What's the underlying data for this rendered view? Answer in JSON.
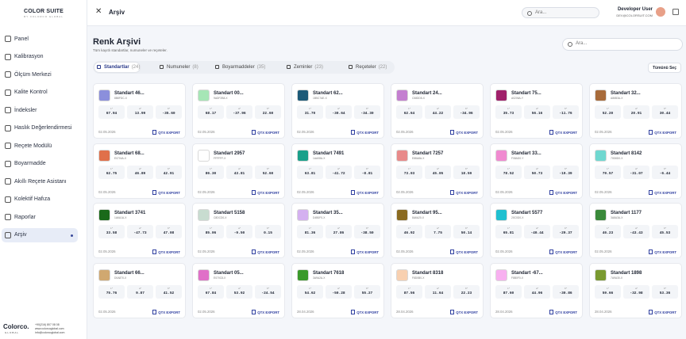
{
  "sidebar": {
    "logo": "COLOR SUITE",
    "logo_sub": "BY COLORCO GLOBAL",
    "items": [
      "Panel",
      "Kalibrasyon",
      "Ölçüm Merkezi",
      "Kalite Kontrol",
      "İndeksler",
      "Haslık Değerlendirmesi",
      "Reçete Modülü",
      "Boyarmadde",
      "Akıllı Reçete Asistanı",
      "Kolektif Hafıza",
      "Raporlar",
      "Arşiv"
    ],
    "active": 11,
    "brand": "Colorco.",
    "brand_sub": "GLOBAL",
    "contact": [
      "+90(216) 807 08 08",
      "www.colorcoglobal.com",
      "info@colorcoglobal.com"
    ]
  },
  "header": {
    "title": "Arşiv",
    "search": "Ara...",
    "user": "Developer User",
    "email": "DEV@COLORSUIT.COM"
  },
  "archive": {
    "title": "Renk Arşivi",
    "subtitle": "Tüm kayıtlı standartlar, numuneler ve reçeteler.",
    "search": "Ara...",
    "tabs": [
      {
        "label": "Standartlar",
        "count": "(24)"
      },
      {
        "label": "Numuneler",
        "count": "(8)"
      },
      {
        "label": "Boyarmaddeler",
        "count": "(35)"
      },
      {
        "label": "Zeminler",
        "count": "(23)"
      },
      {
        "label": "Reçeteler",
        "count": "(22)"
      }
    ],
    "active_tab": 0,
    "select_all": "Tümünü Seç",
    "lab_labels": [
      "L*",
      "a*",
      "b*"
    ],
    "export_label": "QTX EXPORT",
    "cards": [
      {
        "name": "Standart 46...",
        "code": "8B8FDC-X",
        "color": "#8b8fdc",
        "lab": [
          "67.94",
          "13.99",
          "-35.60"
        ],
        "date": "02.05.2026"
      },
      {
        "name": "Standart 00...",
        "code": "9ADF2B8-X",
        "color": "#a6e6b6",
        "lab": [
          "68.17",
          "-37.96",
          "22.60"
        ],
        "date": "02.05.2026"
      },
      {
        "name": "Standart 62...",
        "code": "1B5C7AE-X",
        "color": "#1c5a78",
        "lab": [
          "31.70",
          "-30.64",
          "-34.30"
        ],
        "date": "02.05.2026"
      },
      {
        "name": "Standart 24...",
        "code": "C58DD5-X",
        "color": "#c47fd0",
        "lab": [
          "62.64",
          "44.22",
          "-34.96"
        ],
        "date": "02.05.2026"
      },
      {
        "name": "Standart 75...",
        "code": "A0206A-Y",
        "color": "#a0206a",
        "lab": [
          "35.73",
          "56.16",
          "-11.76"
        ],
        "date": "02.05.2026"
      },
      {
        "name": "Standart 32...",
        "code": "A86B3A-X",
        "color": "#a86b3a",
        "lab": [
          "52.20",
          "20.91",
          "30.44"
        ],
        "date": "02.05.2026"
      },
      {
        "name": "Standart 68...",
        "code": "E0704A-X",
        "color": "#e0704a",
        "lab": [
          "62.75",
          "46.89",
          "42.91"
        ],
        "date": "02.05.2026"
      },
      {
        "name": "Standart 2957",
        "code": "FFFFFF-X",
        "color": "#ffffff",
        "lab": [
          "86.30",
          "43.81",
          "52.60"
        ],
        "date": "02.05.2026"
      },
      {
        "name": "Standart 7491",
        "code": "1AA08A-X",
        "color": "#1aa08a",
        "lab": [
          "63.81",
          "-41.72",
          "-8.81"
        ],
        "date": "02.05.2026"
      },
      {
        "name": "Standart 7257",
        "code": "E88A8A-X",
        "color": "#e88a8a",
        "lab": [
          "73.03",
          "45.05",
          "18.59"
        ],
        "date": "02.05.2026"
      },
      {
        "name": "Standart 33...",
        "code": "F08AD0-Y",
        "color": "#f08ad0",
        "lab": [
          "78.52",
          "50.73",
          "-19.39"
        ],
        "date": "02.05.2026"
      },
      {
        "name": "Standart 8142",
        "code": "70D8D0-X",
        "color": "#70d8d0",
        "lab": [
          "79.57",
          "-31.07",
          "-6.44"
        ],
        "date": "02.05.2026"
      },
      {
        "name": "Standart 3741",
        "code": "1A6A1A-X",
        "color": "#1a6a1a",
        "lab": [
          "33.58",
          "-47.73",
          "47.08"
        ],
        "date": "02.05.2026"
      },
      {
        "name": "Standart 5158",
        "code": "C8DCD0-X",
        "color": "#c8dcd0",
        "lab": [
          "85.06",
          "-9.50",
          "0.15"
        ],
        "date": "02.05.2026"
      },
      {
        "name": "Standart 35...",
        "code": "D4B0F0-X",
        "color": "#d4b0f0",
        "lab": [
          "81.36",
          "27.86",
          "-38.50"
        ],
        "date": "02.05.2026"
      },
      {
        "name": "Standart 95...",
        "code": "8A6A20-X",
        "color": "#8a6a20",
        "lab": [
          "46.92",
          "7.75",
          "50.14"
        ],
        "date": "02.05.2026"
      },
      {
        "name": "Standart 5577",
        "code": "20C0D0-X",
        "color": "#20c0d0",
        "lab": [
          "65.81",
          "-40.44",
          "-29.37"
        ],
        "date": "02.05.2026"
      },
      {
        "name": "Standart 1177",
        "code": "3A8A3A-X",
        "color": "#3a8a3a",
        "lab": [
          "46.23",
          "-43.43",
          "45.53"
        ],
        "date": "02.05.2026"
      },
      {
        "name": "Standart 66...",
        "code": "D0A870-X",
        "color": "#d0a870",
        "lab": [
          "75.76",
          "9.87",
          "41.52"
        ],
        "date": "02.05.2026"
      },
      {
        "name": "Standart 05...",
        "code": "E070C8-X",
        "color": "#e070c8",
        "lab": [
          "67.84",
          "53.92",
          "-24.54"
        ],
        "date": "02.05.2026"
      },
      {
        "name": "Standart 7618",
        "code": "3A9A2A-X",
        "color": "#3a9a2a",
        "lab": [
          "54.62",
          "-50.28",
          "55.27"
        ],
        "date": "28.04.2026"
      },
      {
        "name": "Standart 8318",
        "code": "F8D0B0-X",
        "color": "#f8d0b0",
        "lab": [
          "87.56",
          "11.64",
          "22.23"
        ],
        "date": "28.04.2026"
      },
      {
        "name": "Standart -67...",
        "code": "F8B0F0-X",
        "color": "#f8b0f0",
        "lab": [
          "87.60",
          "44.96",
          "-30.86"
        ],
        "date": "28.04.2026"
      },
      {
        "name": "Standart 1898",
        "code": "7A9A30-X",
        "color": "#7a9a30",
        "lab": [
          "59.66",
          "-32.98",
          "53.36"
        ],
        "date": "28.04.2026"
      }
    ]
  }
}
